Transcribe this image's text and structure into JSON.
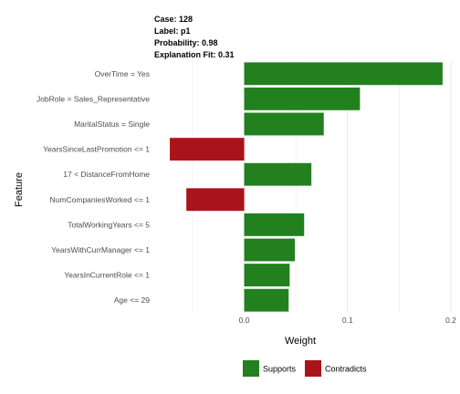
{
  "header": {
    "case": "Case: 128",
    "label": "Label: p1",
    "probability": "Probability: 0.98",
    "explanation_fit": "Explanation Fit: 0.31"
  },
  "colors": {
    "supports": "#22801F",
    "contradicts": "#A9141C",
    "grid": "#ebebeb"
  },
  "chart_data": {
    "type": "bar",
    "orientation": "horizontal",
    "categories": [
      "OverTime = Yes",
      "JobRole = Sales_Representative",
      "MaritalStatus = Single",
      "YearsSinceLastPromotion <= 1",
      "17 < DistanceFromHome",
      "NumCompaniesWorked <= 1",
      "TotalWorkingYears <= 5",
      "YearsWithCurrManager <= 1",
      "YearsInCurrentRole <= 1",
      "Age <= 29"
    ],
    "values": [
      0.192,
      0.112,
      0.077,
      -0.072,
      0.065,
      -0.056,
      0.058,
      0.049,
      0.044,
      0.043
    ],
    "xlabel": "Weight",
    "ylabel": "Feature",
    "xlim": [
      -0.08,
      0.2
    ],
    "xticks": [
      0.0,
      0.1,
      0.2
    ],
    "xtick_labels": [
      "0.0",
      "0.1",
      "0.2"
    ],
    "grid": true,
    "legend": {
      "position": "bottom",
      "entries": [
        {
          "name": "Supports",
          "color": "#22801F"
        },
        {
          "name": "Contradicts",
          "color": "#A9141C"
        }
      ]
    }
  }
}
